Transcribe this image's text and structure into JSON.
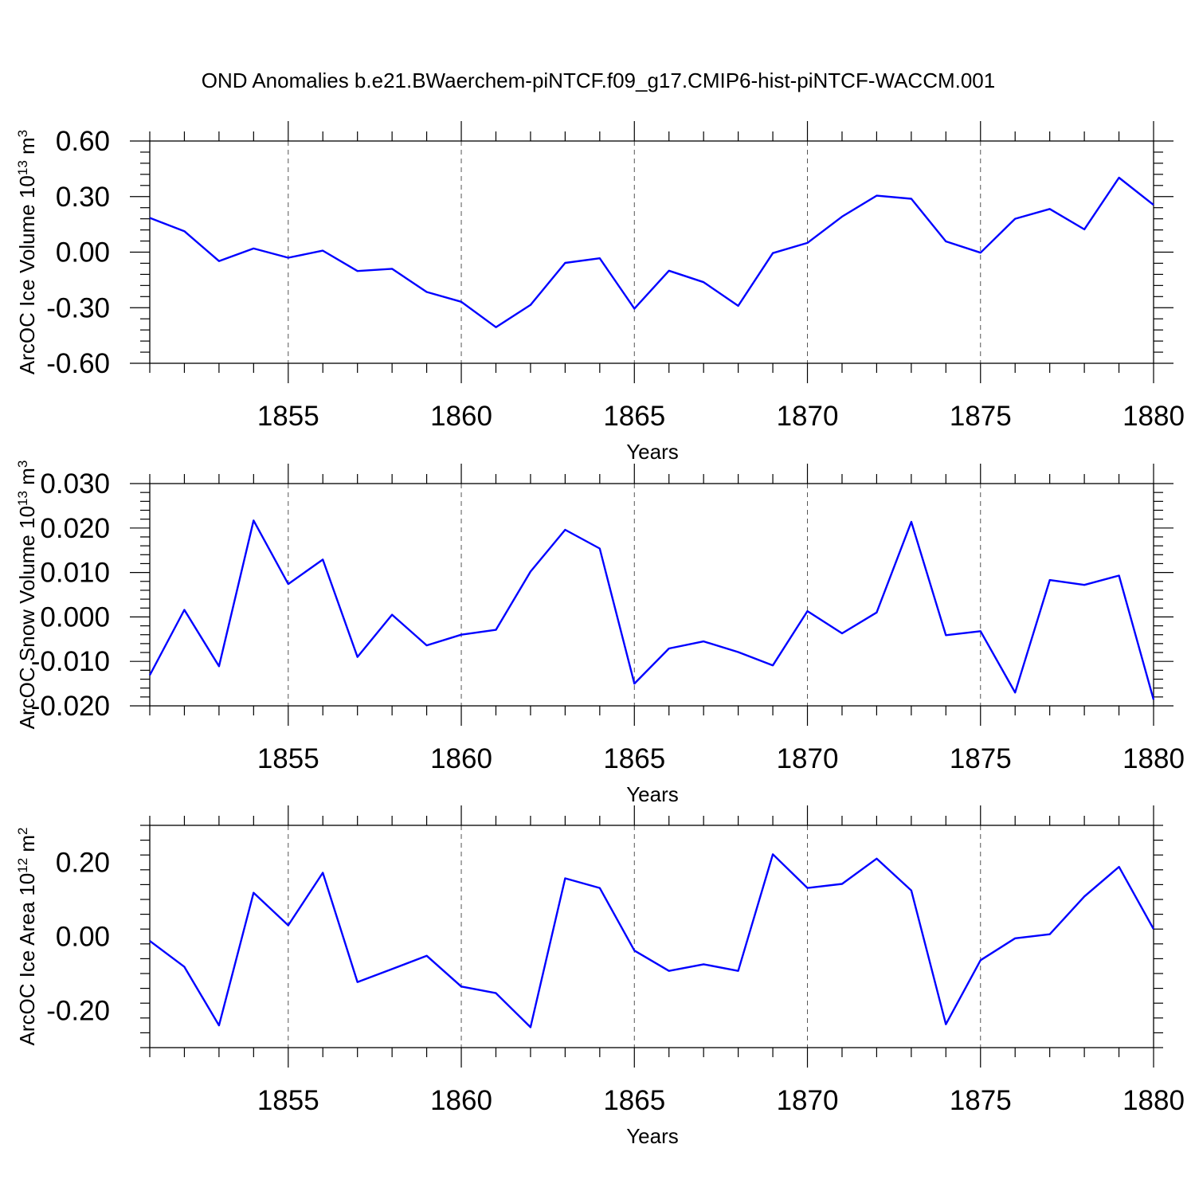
{
  "title": "OND Anomalies b.e21.BWaerchem-piNTCF.f09_g17.CMIP6-hist-piNTCF-WACCM.001",
  "colors": {
    "line": "#0000ff",
    "axis": "#000000",
    "grid": "#555555"
  },
  "chart_data": [
    {
      "type": "line",
      "name": "ice-volume",
      "ylabel_main": "ArcOC Ice Volume 10",
      "ylabel_exp": "13",
      "ylabel_unit": " m",
      "ylabel_unit_exp": "3",
      "xlabel": "Years",
      "xlim": [
        1851,
        1880
      ],
      "ylim": [
        -0.6,
        0.6
      ],
      "xticks": [
        1855,
        1860,
        1865,
        1870,
        1875,
        1880
      ],
      "yticks": [
        -0.6,
        -0.3,
        0.0,
        0.3,
        0.6
      ],
      "ytick_labels": [
        "-0.60",
        "-0.30",
        "0.00",
        "0.30",
        "0.60"
      ],
      "x": [
        1851,
        1852,
        1853,
        1854,
        1855,
        1856,
        1857,
        1858,
        1859,
        1860,
        1861,
        1862,
        1863,
        1864,
        1865,
        1866,
        1867,
        1868,
        1869,
        1870,
        1871,
        1872,
        1873,
        1874,
        1875,
        1876,
        1877,
        1878,
        1879,
        1880
      ],
      "values": [
        0.185,
        0.113,
        -0.048,
        0.02,
        -0.03,
        0.008,
        -0.102,
        -0.09,
        -0.215,
        -0.268,
        -0.405,
        -0.285,
        -0.058,
        -0.033,
        -0.305,
        -0.1,
        -0.162,
        -0.29,
        -0.005,
        0.05,
        0.192,
        0.305,
        0.288,
        0.058,
        -0.003,
        0.18,
        0.233,
        0.123,
        0.402,
        0.255
      ]
    },
    {
      "type": "line",
      "name": "snow-volume",
      "ylabel_main": "ArcOC Snow Volume 10",
      "ylabel_exp": "13",
      "ylabel_unit": " m",
      "ylabel_unit_exp": "3",
      "xlabel": "Years",
      "xlim": [
        1851,
        1880
      ],
      "ylim": [
        -0.02,
        0.03
      ],
      "xticks": [
        1855,
        1860,
        1865,
        1870,
        1875,
        1880
      ],
      "yticks": [
        -0.02,
        -0.01,
        0.0,
        0.01,
        0.02,
        0.03
      ],
      "ytick_labels": [
        "-0.020",
        "-0.010",
        "0.000",
        "0.010",
        "0.020",
        "0.030"
      ],
      "x": [
        1851,
        1852,
        1853,
        1854,
        1855,
        1856,
        1857,
        1858,
        1859,
        1860,
        1861,
        1862,
        1863,
        1864,
        1865,
        1866,
        1867,
        1868,
        1869,
        1870,
        1871,
        1872,
        1873,
        1874,
        1875,
        1876,
        1877,
        1878,
        1879,
        1880
      ],
      "values": [
        -0.0131,
        0.0016,
        -0.0111,
        0.0217,
        0.0074,
        0.0129,
        -0.009,
        0.0005,
        -0.0064,
        -0.004,
        -0.0029,
        0.0102,
        0.0196,
        0.0154,
        -0.015,
        -0.0071,
        -0.0055,
        -0.0079,
        -0.0109,
        0.0013,
        -0.0037,
        0.001,
        0.0214,
        -0.0041,
        -0.0032,
        -0.017,
        0.0083,
        0.0072,
        0.0093,
        -0.0186
      ]
    },
    {
      "type": "line",
      "name": "ice-area",
      "ylabel_main": "ArcOC Ice Area 10",
      "ylabel_exp": "12",
      "ylabel_unit": " m",
      "ylabel_unit_exp": "2",
      "xlabel": "Years",
      "xlim": [
        1851,
        1880
      ],
      "ylim": [
        -0.3,
        0.3
      ],
      "xticks": [
        1855,
        1860,
        1865,
        1870,
        1875,
        1880
      ],
      "yticks": [
        -0.2,
        0.0,
        0.2
      ],
      "ytick_labels": [
        "-0.20",
        "0.00",
        "0.20"
      ],
      "x": [
        1851,
        1852,
        1853,
        1854,
        1855,
        1856,
        1857,
        1858,
        1859,
        1860,
        1861,
        1862,
        1863,
        1864,
        1865,
        1866,
        1867,
        1868,
        1869,
        1870,
        1871,
        1872,
        1873,
        1874,
        1875,
        1876,
        1877,
        1878,
        1879,
        1880
      ],
      "values": [
        -0.012,
        -0.082,
        -0.24,
        0.118,
        0.03,
        0.172,
        -0.123,
        -0.088,
        -0.052,
        -0.135,
        -0.153,
        -0.245,
        0.157,
        0.131,
        -0.038,
        -0.093,
        -0.075,
        -0.093,
        0.222,
        0.131,
        0.142,
        0.21,
        0.124,
        -0.237,
        -0.064,
        -0.005,
        0.006,
        0.108,
        0.188,
        0.02
      ]
    }
  ]
}
